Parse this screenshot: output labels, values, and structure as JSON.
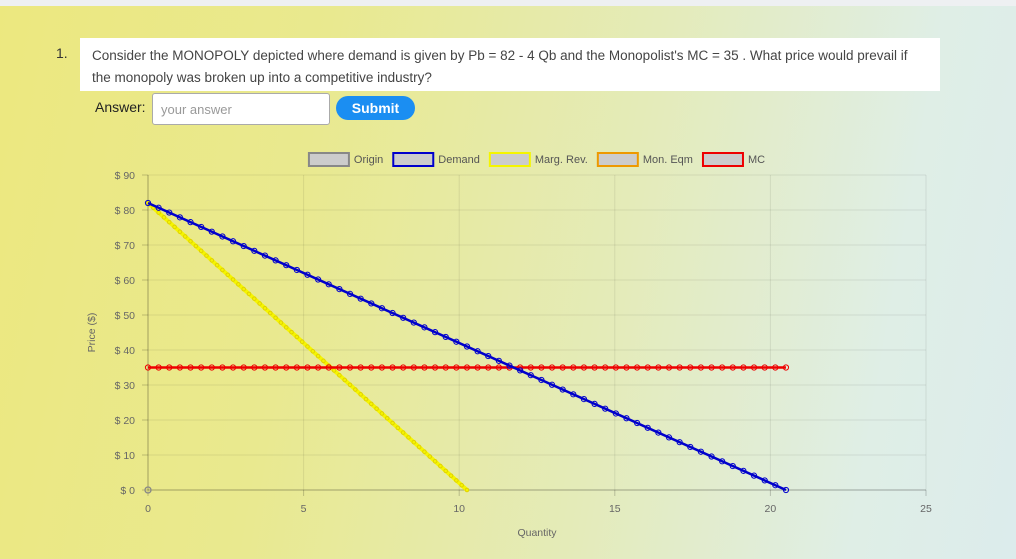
{
  "question": {
    "number": "1.",
    "text": "Consider the MONOPOLY depicted where demand is given by Pb = 82 - 4 Qb and the Monopolist's MC = 35 . What price would prevail if the monopoly was broken up into a competitive industry?"
  },
  "answer": {
    "label": "Answer:",
    "placeholder": "your answer",
    "submit_label": "Submit"
  },
  "chart_data": {
    "type": "line",
    "title": "",
    "xlabel": "Quantity",
    "ylabel": "Price ($)",
    "xlim": [
      0,
      25
    ],
    "ylim": [
      0,
      90
    ],
    "xticks": [
      "0",
      "5",
      "10",
      "15",
      "20",
      "25"
    ],
    "yticks": [
      "$ 0",
      "$ 10",
      "$ 20",
      "$ 30",
      "$ 40",
      "$ 50",
      "$ 60",
      "$ 70",
      "$ 80",
      "$ 90"
    ],
    "grid": true,
    "legend_position": "top",
    "series": [
      {
        "name": "Origin",
        "color": "#888888",
        "fill": "#cccccc",
        "points": [
          [
            0,
            0
          ]
        ]
      },
      {
        "name": "Demand",
        "color": "#0000cc",
        "fill": "#cccccc",
        "points": [
          [
            0,
            82
          ],
          [
            20.5,
            0
          ]
        ]
      },
      {
        "name": "Marg. Rev.",
        "color": "#f5f500",
        "fill": "#cccccc",
        "points": [
          [
            0,
            82
          ],
          [
            10.25,
            0
          ]
        ]
      },
      {
        "name": "Mon. Eqm",
        "color": "#ee9900",
        "fill": "#cccccc",
        "points": []
      },
      {
        "name": "MC",
        "color": "#ee0000",
        "fill": "#cccccc",
        "points": [
          [
            0,
            35
          ],
          [
            20.5,
            35
          ]
        ]
      }
    ]
  }
}
